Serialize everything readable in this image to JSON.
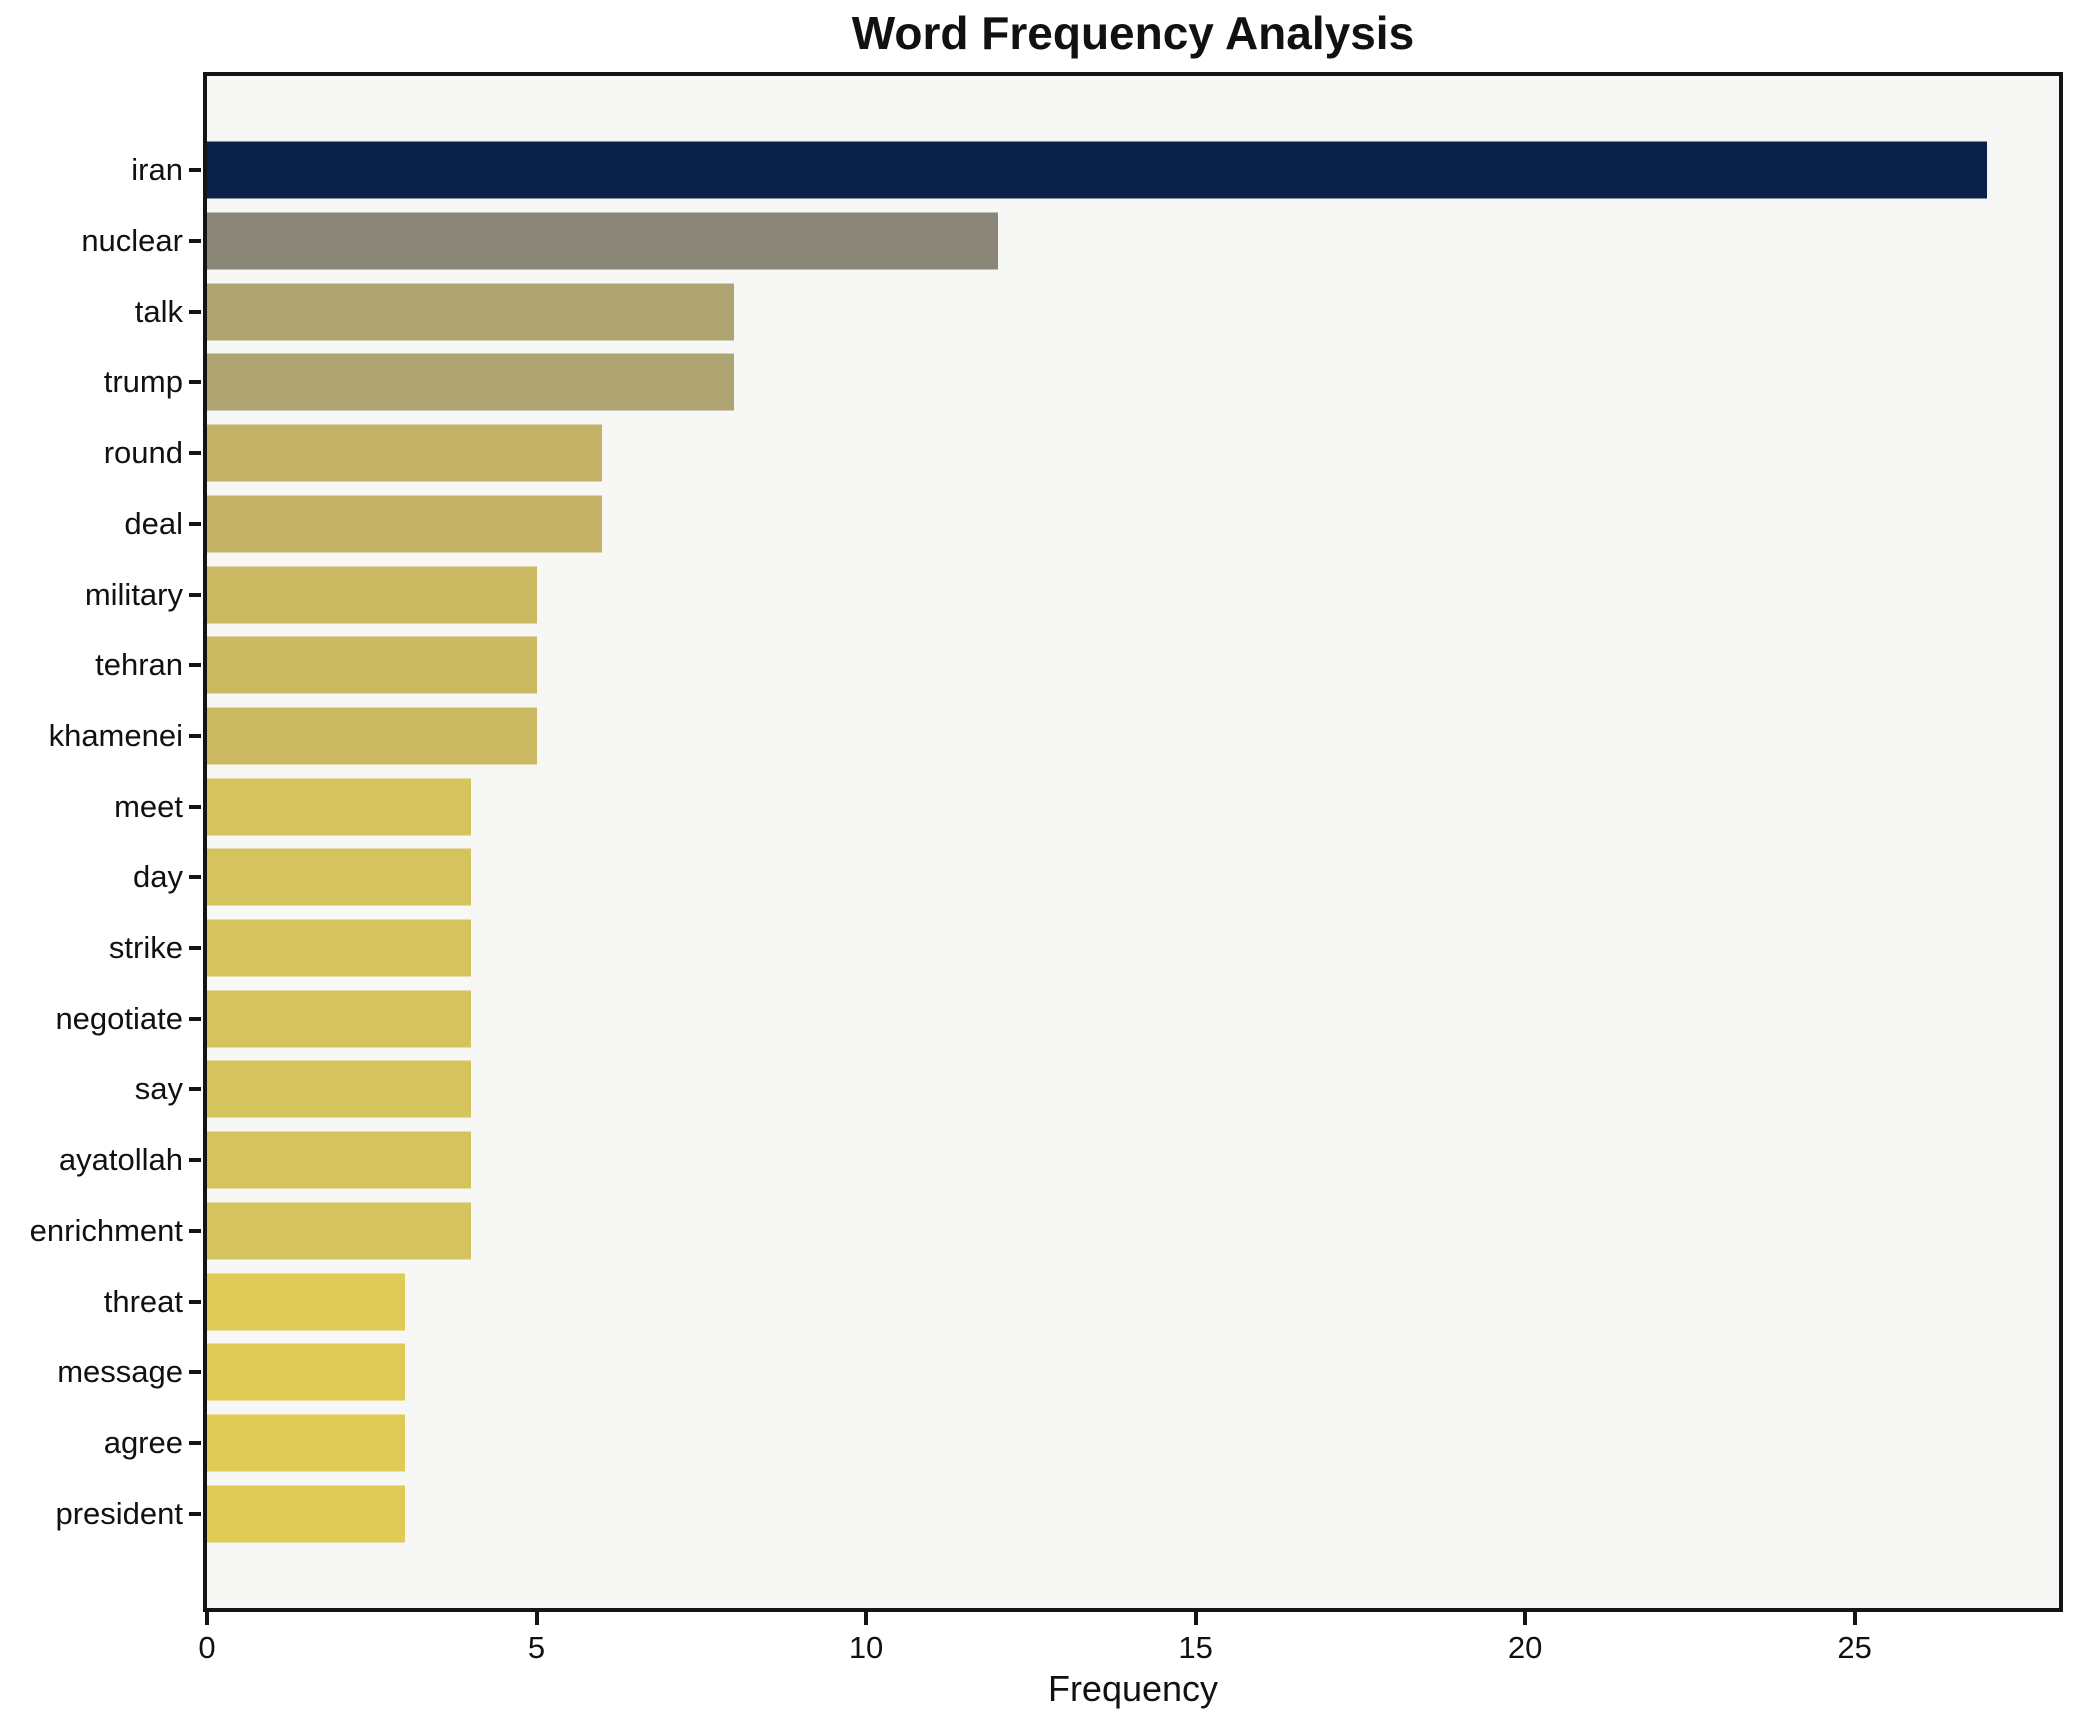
{
  "title": "Word Frequency Analysis",
  "xlabel": "Frequency",
  "colors": {
    "figure_bg": "#ffffff",
    "plot_bg": "#f7f7f6",
    "frame": "#141414",
    "text": "#111111"
  },
  "chart_data": {
    "type": "bar",
    "orientation": "horizontal",
    "title": "Word Frequency Analysis",
    "xlabel": "Frequency",
    "ylabel": "",
    "grid": false,
    "legend": "none",
    "categories": [
      "iran",
      "nuclear",
      "talk",
      "trump",
      "round",
      "deal",
      "military",
      "tehran",
      "khamenei",
      "meet",
      "day",
      "strike",
      "negotiate",
      "say",
      "ayatollah",
      "enrichment",
      "threat",
      "message",
      "agree",
      "president"
    ],
    "values": [
      27,
      12,
      8,
      8,
      6,
      6,
      5,
      5,
      5,
      4,
      4,
      4,
      4,
      4,
      4,
      4,
      3,
      3,
      3,
      3
    ],
    "bar_colors": [
      "#0a2248",
      "#8a8778",
      "#aea471",
      "#aea471",
      "#c4b266",
      "#c4b266",
      "#cbb962",
      "#cbb962",
      "#cbb962",
      "#d5c35e",
      "#d5c35e",
      "#d5c35e",
      "#d5c35e",
      "#d5c35e",
      "#d5c35e",
      "#d5c35e",
      "#dfcb55",
      "#dfcb55",
      "#dfcb55",
      "#dfcb55"
    ],
    "colormap_note": "cividis-style: darkest navy for highest frequency grading to yellow for lowest",
    "xlim": [
      0,
      28.1
    ],
    "xticks": [
      0,
      5,
      10,
      15,
      20,
      25
    ]
  }
}
